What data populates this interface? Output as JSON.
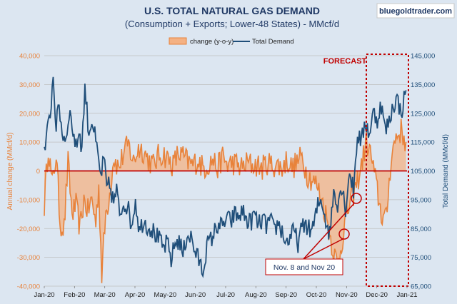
{
  "chart_data": {
    "type": "line",
    "title": "U.S. TOTAL NATURAL GAS DEMAND",
    "subtitle": "(Consumption + Exports; Lower-48 States) - MMcf/d",
    "watermark": "bluegoldtrader.com",
    "x_tick_labels": [
      "Jan-20",
      "Feb-20",
      "Mar-20",
      "Apr-20",
      "May-20",
      "Jun-20",
      "Jul-20",
      "Aug-20",
      "Sep-20",
      "Oct-20",
      "Nov-20",
      "Dec-20",
      "Jan-21"
    ],
    "y_left": {
      "label": "Annual change (MMcf/d)",
      "ylim": [
        -40000,
        40000
      ],
      "tick_labels": [
        "40,000",
        "30,000",
        "20,000",
        "10,000",
        "0",
        "-10,000",
        "-20,000",
        "-30,000",
        "-40,000"
      ]
    },
    "y_right": {
      "label": "Total Demand (MMcf/d)",
      "ylim": [
        65000,
        145000
      ],
      "tick_labels": [
        "145,000",
        "135,000",
        "125,000",
        "115,000",
        "105,000",
        "95,000",
        "85,000",
        "75,000",
        "65,000"
      ]
    },
    "grid": true,
    "legend_position": "top",
    "series": [
      {
        "name": "change (y-o-y)",
        "type": "area",
        "axis": "left",
        "color": "#e8823a",
        "anchors": [
          [
            0,
            -12000
          ],
          [
            4,
            9000
          ],
          [
            8,
            -5000
          ],
          [
            12,
            6000
          ],
          [
            16,
            -18000
          ],
          [
            20,
            -20000
          ],
          [
            24,
            3000
          ],
          [
            28,
            -15000
          ],
          [
            32,
            -12000
          ],
          [
            36,
            -20000
          ],
          [
            40,
            -10000
          ],
          [
            44,
            -14000
          ],
          [
            48,
            -10000
          ],
          [
            52,
            -18000
          ],
          [
            55,
            -5000
          ],
          [
            58,
            -36000
          ],
          [
            62,
            -15000
          ],
          [
            66,
            -8000
          ],
          [
            70,
            5000
          ],
          [
            75,
            1000
          ],
          [
            80,
            6000
          ],
          [
            85,
            9000
          ],
          [
            90,
            3000
          ],
          [
            95,
            8000
          ],
          [
            100,
            7000
          ],
          [
            105,
            4000
          ],
          [
            110,
            2000
          ],
          [
            115,
            5000
          ],
          [
            120,
            6000
          ],
          [
            125,
            4000
          ],
          [
            130,
            2000
          ],
          [
            135,
            6000
          ],
          [
            140,
            5000
          ],
          [
            145,
            3000
          ],
          [
            150,
            2000
          ],
          [
            155,
            4000
          ],
          [
            160,
            1000
          ],
          [
            165,
            2000
          ],
          [
            170,
            4000
          ],
          [
            175,
            1000
          ],
          [
            180,
            5000
          ],
          [
            185,
            2000
          ],
          [
            190,
            3000
          ],
          [
            195,
            2000
          ],
          [
            200,
            1000
          ],
          [
            205,
            3000
          ],
          [
            210,
            2000
          ],
          [
            215,
            2000
          ],
          [
            220,
            1000
          ],
          [
            225,
            3000
          ],
          [
            230,
            2000
          ],
          [
            235,
            2000
          ],
          [
            240,
            1000
          ],
          [
            245,
            4000
          ],
          [
            250,
            1000
          ],
          [
            255,
            3000
          ],
          [
            260,
            5000
          ],
          [
            265,
            -1000
          ],
          [
            270,
            -3000
          ],
          [
            275,
            -5000
          ],
          [
            280,
            -10000
          ],
          [
            284,
            -15000
          ],
          [
            288,
            -22000
          ],
          [
            292,
            -28000
          ],
          [
            296,
            -33000
          ],
          [
            300,
            -25000
          ],
          [
            305,
            -15000
          ],
          [
            310,
            -10000
          ],
          [
            315,
            -5000
          ],
          [
            320,
            2000
          ],
          [
            325,
            10000
          ],
          [
            330,
            5000
          ],
          [
            335,
            -5000
          ],
          [
            340,
            -15000
          ],
          [
            345,
            -17000
          ],
          [
            350,
            5000
          ],
          [
            355,
            12000
          ],
          [
            360,
            14000
          ],
          [
            365,
            10000
          ]
        ],
        "values_in_y": "MMcf/d annual change"
      },
      {
        "name": "Total Demand",
        "type": "line",
        "axis": "right",
        "color": "#1f4e79",
        "anchors": [
          [
            0,
            111000
          ],
          [
            3,
            118000
          ],
          [
            6,
            125000
          ],
          [
            9,
            138000
          ],
          [
            12,
            120000
          ],
          [
            15,
            128000
          ],
          [
            18,
            118000
          ],
          [
            22,
            116000
          ],
          [
            25,
            126000
          ],
          [
            28,
            121000
          ],
          [
            32,
            113000
          ],
          [
            35,
            119000
          ],
          [
            38,
            113000
          ],
          [
            41,
            134000
          ],
          [
            45,
            118000
          ],
          [
            48,
            123000
          ],
          [
            51,
            117000
          ],
          [
            54,
            110000
          ],
          [
            57,
            103000
          ],
          [
            60,
            109000
          ],
          [
            63,
            99000
          ],
          [
            66,
            100000
          ],
          [
            70,
            94000
          ],
          [
            73,
            98000
          ],
          [
            76,
            90000
          ],
          [
            80,
            94000
          ],
          [
            84,
            93000
          ],
          [
            88,
            86000
          ],
          [
            92,
            95000
          ],
          [
            96,
            84000
          ],
          [
            100,
            88000
          ],
          [
            104,
            86000
          ],
          [
            108,
            85000
          ],
          [
            112,
            83000
          ],
          [
            116,
            81000
          ],
          [
            120,
            78000
          ],
          [
            124,
            80000
          ],
          [
            128,
            74000
          ],
          [
            132,
            80000
          ],
          [
            136,
            81000
          ],
          [
            140,
            76000
          ],
          [
            144,
            83000
          ],
          [
            148,
            82000
          ],
          [
            152,
            77000
          ],
          [
            156,
            74000
          ],
          [
            160,
            70000
          ],
          [
            164,
            79000
          ],
          [
            168,
            81000
          ],
          [
            172,
            84000
          ],
          [
            176,
            87000
          ],
          [
            180,
            85000
          ],
          [
            184,
            89000
          ],
          [
            188,
            87000
          ],
          [
            192,
            90000
          ],
          [
            196,
            89000
          ],
          [
            200,
            91000
          ],
          [
            204,
            88000
          ],
          [
            208,
            87000
          ],
          [
            212,
            90000
          ],
          [
            216,
            86000
          ],
          [
            220,
            88000
          ],
          [
            224,
            86000
          ],
          [
            228,
            88000
          ],
          [
            232,
            84000
          ],
          [
            236,
            87000
          ],
          [
            240,
            84000
          ],
          [
            244,
            80000
          ],
          [
            248,
            82000
          ],
          [
            252,
            84000
          ],
          [
            256,
            80000
          ],
          [
            260,
            85000
          ],
          [
            264,
            87000
          ],
          [
            268,
            84000
          ],
          [
            272,
            86000
          ],
          [
            276,
            93000
          ],
          [
            280,
            95000
          ],
          [
            284,
            88000
          ],
          [
            288,
            83000
          ],
          [
            292,
            98000
          ],
          [
            296,
            94000
          ],
          [
            300,
            100000
          ],
          [
            304,
            92000
          ],
          [
            308,
            105000
          ],
          [
            312,
            98000
          ],
          [
            316,
            118000
          ],
          [
            320,
            115000
          ],
          [
            324,
            122000
          ],
          [
            328,
            118000
          ],
          [
            332,
            125000
          ],
          [
            336,
            123000
          ],
          [
            340,
            128000
          ],
          [
            344,
            119000
          ],
          [
            348,
            122000
          ],
          [
            352,
            128000
          ],
          [
            356,
            130000
          ],
          [
            360,
            125000
          ],
          [
            365,
            133000
          ]
        ],
        "values_in_y": "MMcf/d"
      }
    ],
    "annotations": [
      {
        "text": "FORECAST",
        "color": "#c00000"
      },
      {
        "text": "Nov. 8 and Nov 20",
        "color": "#c00000"
      }
    ]
  }
}
